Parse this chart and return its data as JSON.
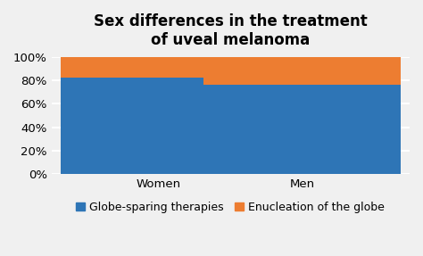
{
  "categories": [
    "Women",
    "Men"
  ],
  "globe_sparing": [
    0.82,
    0.76
  ],
  "enucleation": [
    0.18,
    0.24
  ],
  "blue_color": "#2E75B6",
  "orange_color": "#ED7D31",
  "title_line1": "Sex differences in the treatment",
  "title_line2": "of uveal melanoma",
  "legend_label1": "Globe-sparing therapies",
  "legend_label2": "Enucleation of the globe",
  "yticks": [
    0.0,
    0.2,
    0.4,
    0.6,
    0.8,
    1.0
  ],
  "ytick_labels": [
    "0%",
    "20%",
    "40%",
    "60%",
    "80%",
    "100%"
  ],
  "ylim": [
    0,
    1.0
  ],
  "background_color": "#F0F0F0",
  "plot_background": "#F0F0F0",
  "title_fontsize": 12,
  "tick_fontsize": 9.5,
  "legend_fontsize": 9,
  "bar_width": 0.55,
  "grid_color": "#FFFFFF",
  "bar_positions": [
    0.3,
    0.7
  ]
}
